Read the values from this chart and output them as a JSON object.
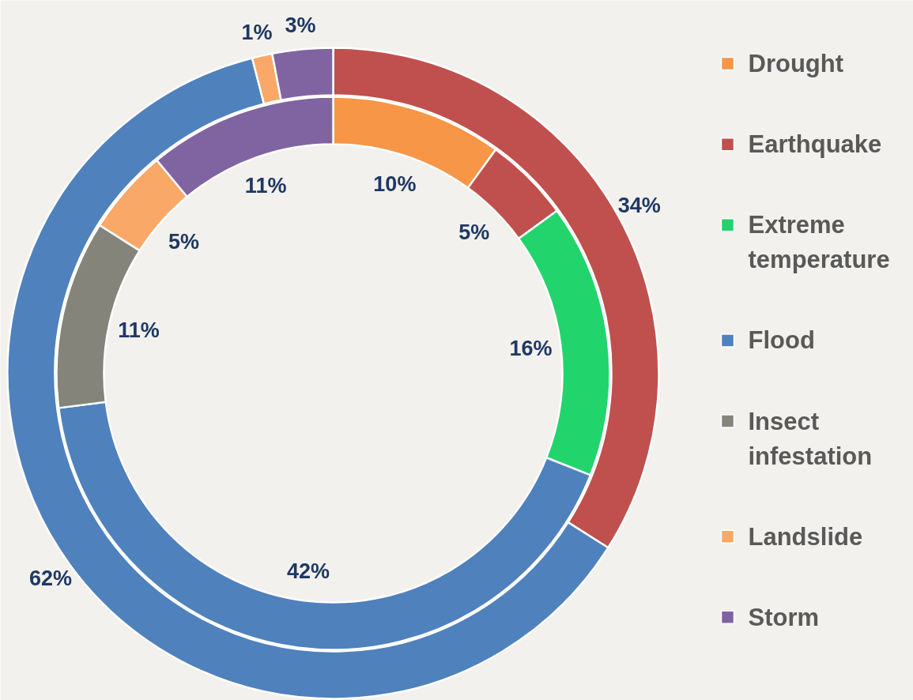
{
  "chart_data": {
    "type": "donut",
    "categories": [
      "Drought",
      "Earthquake",
      "Extreme temperature",
      "Flood",
      "Insect infestation",
      "Landslide",
      "Storm"
    ],
    "colors": [
      "#f79646",
      "#c0504d",
      "#22d46c",
      "#4f81bd",
      "#84847a",
      "#f9a868",
      "#8064a2"
    ],
    "series": [
      {
        "values": [
          null,
          34,
          null,
          62,
          null,
          1,
          3
        ],
        "value_labels": [
          null,
          "34%",
          null,
          "62%",
          null,
          "1%",
          "3%"
        ]
      },
      {
        "values": [
          10,
          5,
          16,
          42,
          11,
          5,
          11
        ],
        "value_labels": [
          "10%",
          "5%",
          "16%",
          "42%",
          "11%",
          "5%",
          "11%"
        ]
      }
    ],
    "legend": "right"
  }
}
